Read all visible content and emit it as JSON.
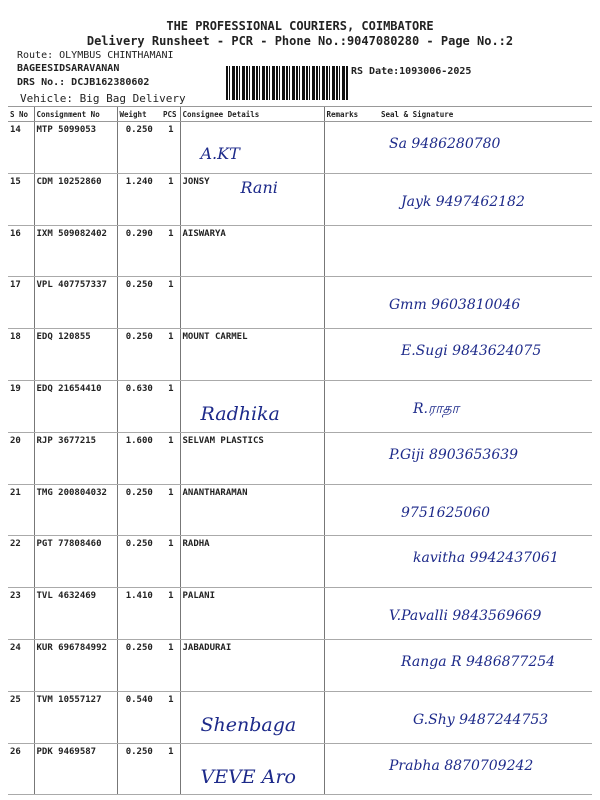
{
  "header": {
    "title": "THE PROFESSIONAL COURIERS, COIMBATORE",
    "subtitle": "Delivery Runsheet - PCR - Phone No.:9047080280 - Page No.:2",
    "route": "Route: OLYMBUS CHINTHAMANI",
    "executive": "BAGEESIDSARAVANAN",
    "drs": "DRS No.: DCJB162380602",
    "vehicle": "Vehicle: Big Bag Delivery",
    "rs_date": "RS Date:1093006-2025"
  },
  "columns": [
    "S No",
    "Consignment No",
    "Weight",
    "PCS",
    "Consignee Details",
    "Remarks",
    "Seal & Signature"
  ],
  "rows": [
    {
      "sno": "14",
      "cn": "MTP 5099053",
      "wt": "0.250",
      "pcs": "1",
      "consignee": "",
      "hw_name": "A.KT",
      "hw_sig": "Sa 9486280780"
    },
    {
      "sno": "15",
      "cn": "CDM 10252860",
      "wt": "1.240",
      "pcs": "1",
      "consignee": "JONSY",
      "hw_name": "Rani",
      "hw_sig": "Jayk 9497462182"
    },
    {
      "sno": "16",
      "cn": "IXM 509082402",
      "wt": "0.290",
      "pcs": "1",
      "consignee": "AISWARYA",
      "hw_name": "",
      "hw_sig": ""
    },
    {
      "sno": "17",
      "cn": "VPL 407757337",
      "wt": "0.250",
      "pcs": "1",
      "consignee": "",
      "hw_name": "",
      "hw_sig": "Gmm 9603810046"
    },
    {
      "sno": "18",
      "cn": "EDQ 120855",
      "wt": "0.250",
      "pcs": "1",
      "consignee": "MOUNT CARMEL",
      "hw_name": "",
      "hw_sig": "E.Sugi 9843624075"
    },
    {
      "sno": "19",
      "cn": "EDQ 21654410",
      "wt": "0.630",
      "pcs": "1",
      "consignee": "",
      "hw_name": "Radhika",
      "hw_sig": "R.ராதா"
    },
    {
      "sno": "20",
      "cn": "RJP 3677215",
      "wt": "1.600",
      "pcs": "1",
      "consignee": "SELVAM PLASTICS",
      "hw_name": "",
      "hw_sig": "P.Giji 8903653639"
    },
    {
      "sno": "21",
      "cn": "TMG 200804032",
      "wt": "0.250",
      "pcs": "1",
      "consignee": "ANANTHARAMAN",
      "hw_name": "",
      "hw_sig": "9751625060"
    },
    {
      "sno": "22",
      "cn": "PGT 77808460",
      "wt": "0.250",
      "pcs": "1",
      "consignee": "RADHA",
      "hw_name": "",
      "hw_sig": "kavitha 9942437061"
    },
    {
      "sno": "23",
      "cn": "TVL 4632469",
      "wt": "1.410",
      "pcs": "1",
      "consignee": "PALANI",
      "hw_name": "",
      "hw_sig": "V.Pavalli 9843569669"
    },
    {
      "sno": "24",
      "cn": "KUR 696784992",
      "wt": "0.250",
      "pcs": "1",
      "consignee": "JABADURAI",
      "hw_name": "",
      "hw_sig": "Ranga R 9486877254"
    },
    {
      "sno": "25",
      "cn": "TVM 10557127",
      "wt": "0.540",
      "pcs": "1",
      "consignee": "",
      "hw_name": "Shenbaga",
      "hw_sig": "G.Shy 9487244753"
    },
    {
      "sno": "26",
      "cn": "PDK 9469587",
      "wt": "0.250",
      "pcs": "1",
      "consignee": "",
      "hw_name": "VEVE Aro",
      "hw_sig": "Prabha 8870709242"
    }
  ]
}
